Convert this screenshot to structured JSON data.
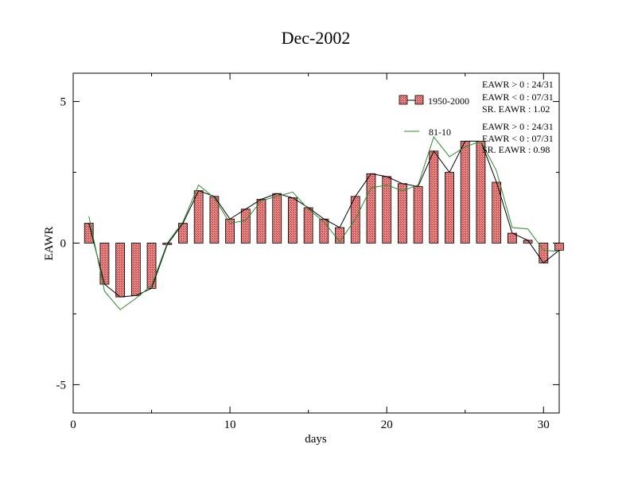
{
  "chart_data": {
    "type": "bar",
    "title": "Dec-2002",
    "xlabel": "days",
    "ylabel": "EAWR",
    "xlim": [
      0,
      31
    ],
    "ylim": [
      -6,
      6
    ],
    "x_ticks": [
      0,
      10,
      20,
      30
    ],
    "y_ticks": [
      -5,
      0,
      5
    ],
    "x_tick_labels": [
      "0",
      "10",
      "20",
      "30"
    ],
    "y_tick_labels": [
      "-5",
      "0",
      "5"
    ],
    "grid": false,
    "legend_position": "top-right",
    "x": [
      1,
      2,
      3,
      4,
      5,
      6,
      7,
      8,
      9,
      10,
      11,
      12,
      13,
      14,
      15,
      16,
      17,
      18,
      19,
      20,
      21,
      22,
      23,
      24,
      25,
      26,
      27,
      28,
      29,
      30,
      31
    ],
    "series": [
      {
        "name": "1950-2000",
        "style": "bars-with-line",
        "bar_color": "#e07a7a",
        "line_color": "#000000",
        "values": [
          0.7,
          -1.45,
          -1.9,
          -1.85,
          -1.6,
          -0.05,
          0.7,
          1.85,
          1.65,
          0.85,
          1.2,
          1.55,
          1.75,
          1.6,
          1.25,
          0.85,
          0.55,
          1.65,
          2.45,
          2.35,
          2.1,
          2.0,
          3.25,
          2.5,
          3.6,
          3.6,
          2.15,
          0.35,
          0.1,
          -0.7,
          -0.25
        ]
      },
      {
        "name": "81-10",
        "style": "line",
        "line_color": "#2e8b2e",
        "values": [
          0.95,
          -1.7,
          -2.35,
          -1.95,
          -1.5,
          0.0,
          0.75,
          2.05,
          1.6,
          0.7,
          0.8,
          1.5,
          1.65,
          1.8,
          1.2,
          0.75,
          0.05,
          0.85,
          1.95,
          2.05,
          1.85,
          2.05,
          3.75,
          3.05,
          3.4,
          3.6,
          2.55,
          0.55,
          0.5,
          -0.25,
          -0.3
        ]
      }
    ],
    "annotations": [
      {
        "series": "1950-2000",
        "lines": [
          "EAWR > 0 : 24/31",
          "EAWR < 0 : 07/31",
          "SR. EAWR :  1.02"
        ]
      },
      {
        "series": "81-10",
        "lines": [
          "EAWR > 0 : 24/31",
          "EAWR < 0 : 07/31",
          "SR. EAWR :  0.98"
        ]
      }
    ]
  }
}
